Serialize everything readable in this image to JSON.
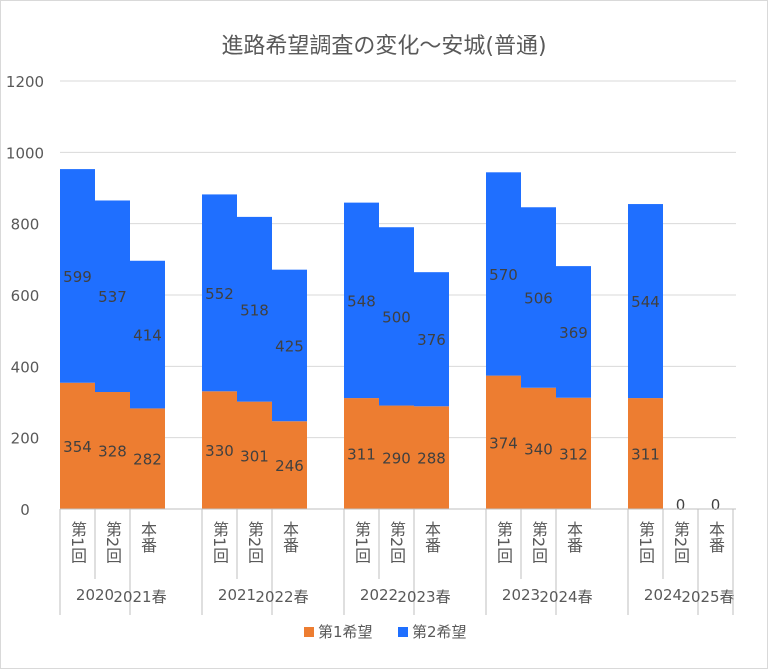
{
  "chart_data": {
    "type": "bar",
    "stacked": true,
    "title": "進路希望調査の変化～安城(普通)",
    "ylim": [
      0,
      1200
    ],
    "yticks": [
      0,
      200,
      400,
      600,
      800,
      1000,
      1200
    ],
    "grid": true,
    "legend_position": "bottom",
    "groups": [
      {
        "year": "2020",
        "spring": "2021春",
        "categories": [
          "第1回",
          "第2回",
          "本番"
        ]
      },
      {
        "year": "2021",
        "spring": "2022春",
        "categories": [
          "第1回",
          "第2回",
          "本番"
        ]
      },
      {
        "year": "2022",
        "spring": "2023春",
        "categories": [
          "第1回",
          "第2回",
          "本番"
        ]
      },
      {
        "year": "2023",
        "spring": "2024春",
        "categories": [
          "第1回",
          "第2回",
          "本番"
        ]
      },
      {
        "year": "2024",
        "spring": "2025春",
        "categories": [
          "第1回",
          "第2回",
          "本番"
        ]
      }
    ],
    "series": [
      {
        "name": "第1希望",
        "color": "#ed7d31",
        "values": [
          354,
          328,
          282,
          330,
          301,
          246,
          311,
          290,
          288,
          374,
          340,
          312,
          311,
          0,
          null
        ]
      },
      {
        "name": "第2希望",
        "color": "#1f6fff",
        "values": [
          599,
          537,
          414,
          552,
          518,
          425,
          548,
          500,
          376,
          570,
          506,
          369,
          544,
          null,
          0
        ]
      }
    ]
  }
}
